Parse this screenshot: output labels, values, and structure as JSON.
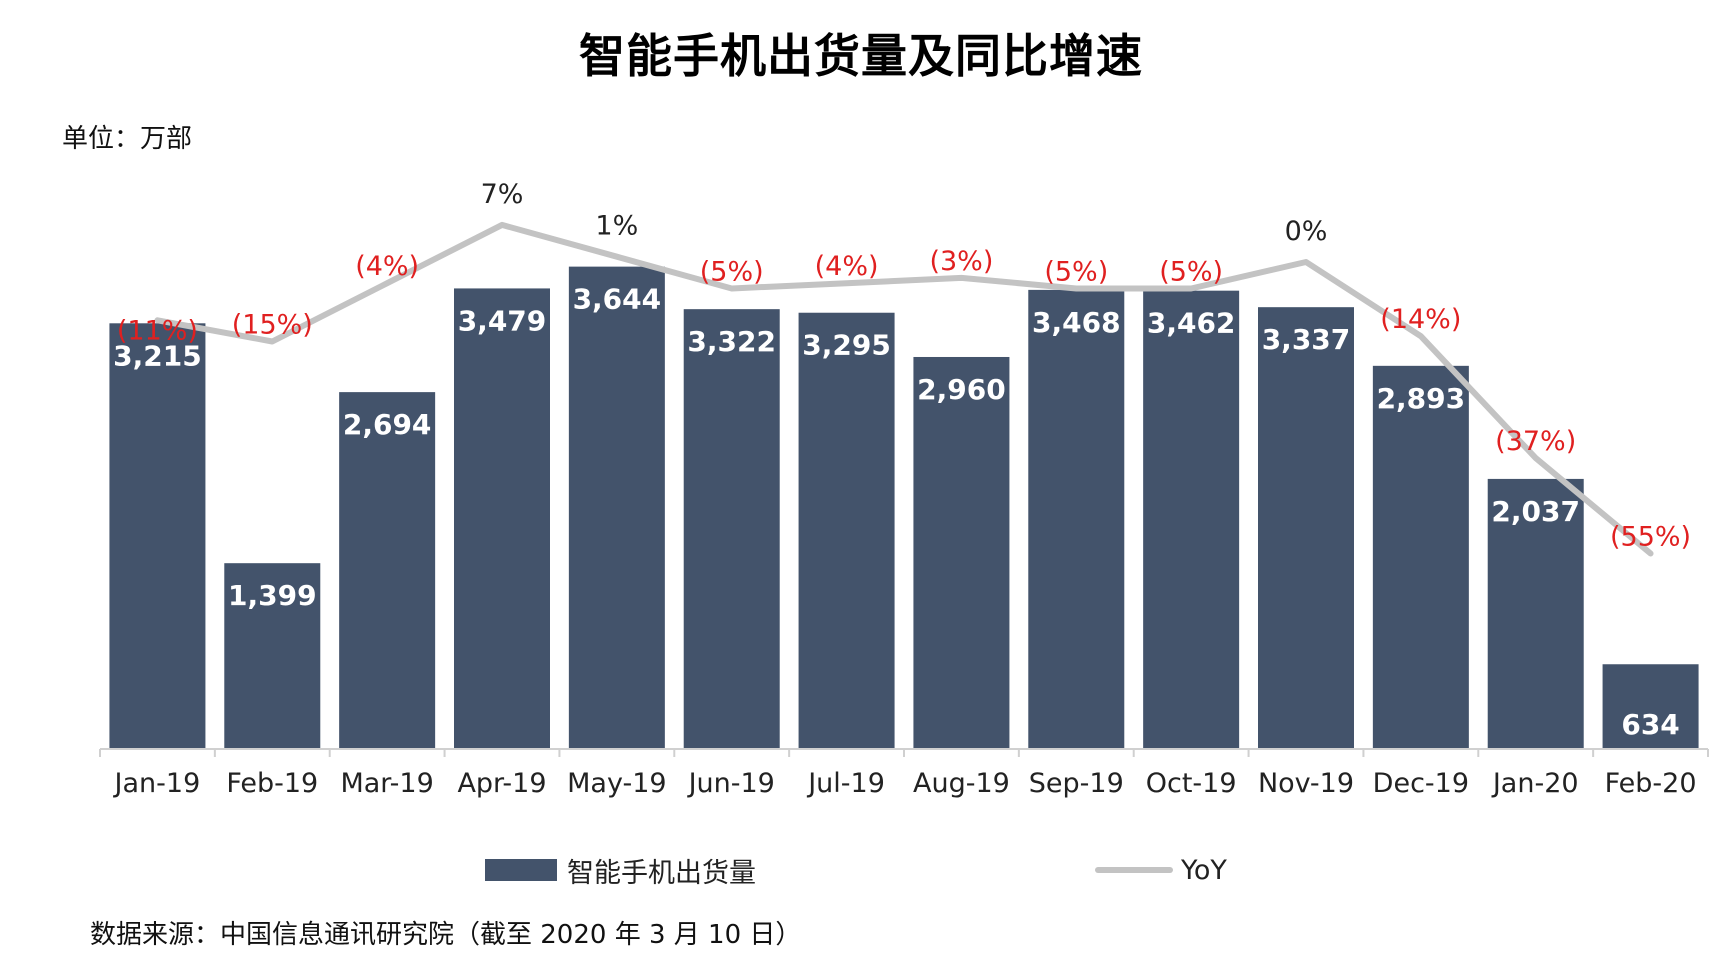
{
  "title": "智能手机出货量及同比增速",
  "unit_label": "单位：万部",
  "source_note": "数据来源：中国信息通讯研究院（截至 2020 年 3 月 10 日）",
  "legend": {
    "bar_label": "智能手机出货量",
    "line_label": "YoY"
  },
  "colors": {
    "bar": "#43536b",
    "line": "#c3c3c3",
    "negative_label": "#e02020",
    "positive_label": "#222222",
    "value_label": "#ffffff",
    "axis": "#d0d0d0"
  },
  "chart_data": {
    "type": "bar",
    "title": "智能手机出货量及同比增速",
    "ylabel": "单位：万部",
    "categories": [
      "Jan-19",
      "Feb-19",
      "Mar-19",
      "Apr-19",
      "May-19",
      "Jun-19",
      "Jul-19",
      "Aug-19",
      "Sep-19",
      "Oct-19",
      "Nov-19",
      "Dec-19",
      "Jan-20",
      "Feb-20"
    ],
    "series": [
      {
        "name": "智能手机出货量",
        "type": "bar",
        "values": [
          3215,
          1399,
          2694,
          3479,
          3644,
          3322,
          3295,
          2960,
          3468,
          3462,
          3337,
          2893,
          2037,
          634
        ],
        "labels": [
          "3,215",
          "1,399",
          "2,694",
          "3,479",
          "3,644",
          "3,322",
          "3,295",
          "2,960",
          "3,468",
          "3,462",
          "3,337",
          "2,893",
          "2,037",
          "634"
        ]
      },
      {
        "name": "YoY",
        "type": "line",
        "values": [
          -11,
          -15,
          -4,
          7,
          1,
          -5,
          -4,
          -3,
          -5,
          -5,
          0,
          -14,
          -37,
          -55
        ],
        "labels": [
          "(11%)",
          "(15%)",
          "(4%)",
          "7%",
          "1%",
          "(5%)",
          "(4%)",
          "(3%)",
          "(5%)",
          "(5%)",
          "0%",
          "(14%)",
          "(37%)",
          "(55%)"
        ]
      }
    ],
    "ylim": [
      0,
      4000
    ],
    "legend_position": "bottom",
    "grid": false
  }
}
